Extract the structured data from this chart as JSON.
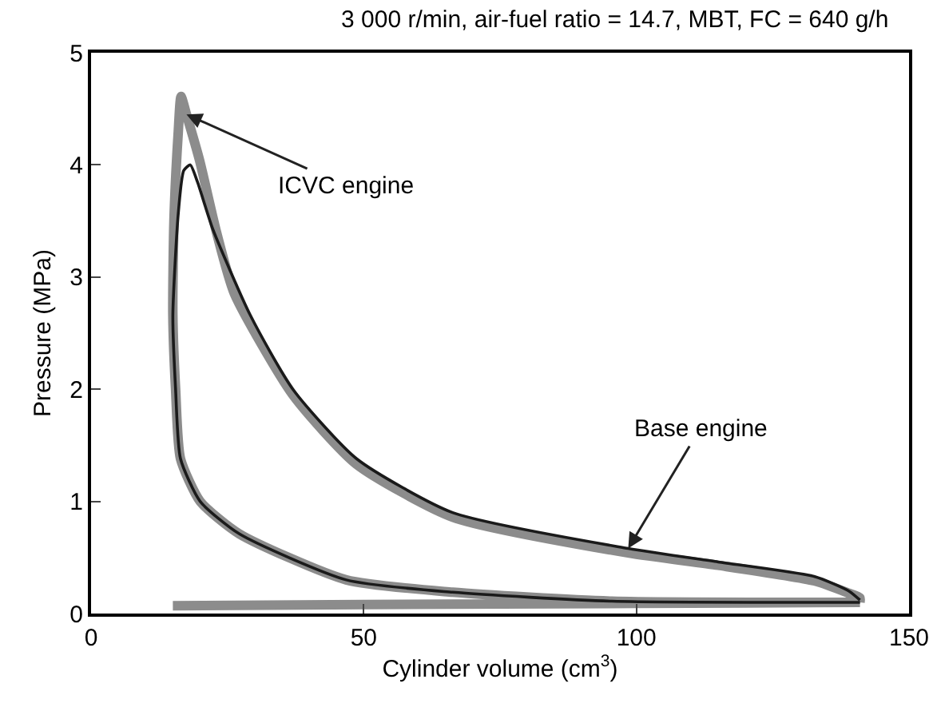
{
  "chart_data": {
    "type": "line",
    "title": "3 000 r/min, air-fuel ratio = 14.7, MBT, FC = 640 g/h",
    "xlabel": "Cylinder volume (cm$^{3}$)",
    "ylabel": "Pressure (MPa)",
    "xlim": [
      0,
      150
    ],
    "ylim": [
      0,
      5
    ],
    "xticks": [
      0,
      50,
      100,
      150
    ],
    "yticks": [
      0,
      1,
      2,
      3,
      4,
      5
    ],
    "grid": false,
    "marker": "none",
    "line_style": "solid",
    "series": [
      {
        "color": "#8c8c8c",
        "x": [
          15,
          50,
          100,
          141,
          141,
          95.5,
          66.3,
          46.8,
          27.2,
          20,
          16.4,
          15.5,
          15,
          15.2,
          16,
          16.5,
          17.5,
          19.9,
          23,
          26.3,
          37,
          48.7,
          66.3,
          98.5,
          115,
          132.7,
          139,
          141,
          141
        ],
        "values": [
          0.07,
          0.08,
          0.09,
          0.1,
          0.1,
          0.11,
          0.19,
          0.3,
          0.71,
          1.0,
          1.38,
          2.0,
          2.66,
          3.5,
          4.3,
          4.61,
          4.45,
          4.04,
          3.4,
          2.85,
          1.95,
          1.33,
          0.86,
          0.54,
          0.43,
          0.29,
          0.18,
          0.14,
          0.1
        ]
      },
      {
        "color": "#1a1a1a",
        "x": [
          141,
          95.5,
          66.3,
          46.8,
          27.2,
          20,
          16.4,
          15.5,
          15,
          16,
          17,
          18.2,
          19.5,
          22.3,
          29.2,
          37,
          48.7,
          66.3,
          98.5,
          115,
          132.7,
          139,
          141
        ],
        "values": [
          0.1,
          0.11,
          0.19,
          0.3,
          0.71,
          1.0,
          1.38,
          2.0,
          2.66,
          3.57,
          3.95,
          4.0,
          3.85,
          3.43,
          2.66,
          2.0,
          1.38,
          0.9,
          0.58,
          0.46,
          0.33,
          0.2,
          0.12
        ]
      }
    ],
    "annotations": [
      {
        "text": "ICVC engine",
        "x": 17.5,
        "y": 4.45
      },
      {
        "text": "Base engine",
        "x": 98.5,
        "y": 0.58
      }
    ]
  }
}
